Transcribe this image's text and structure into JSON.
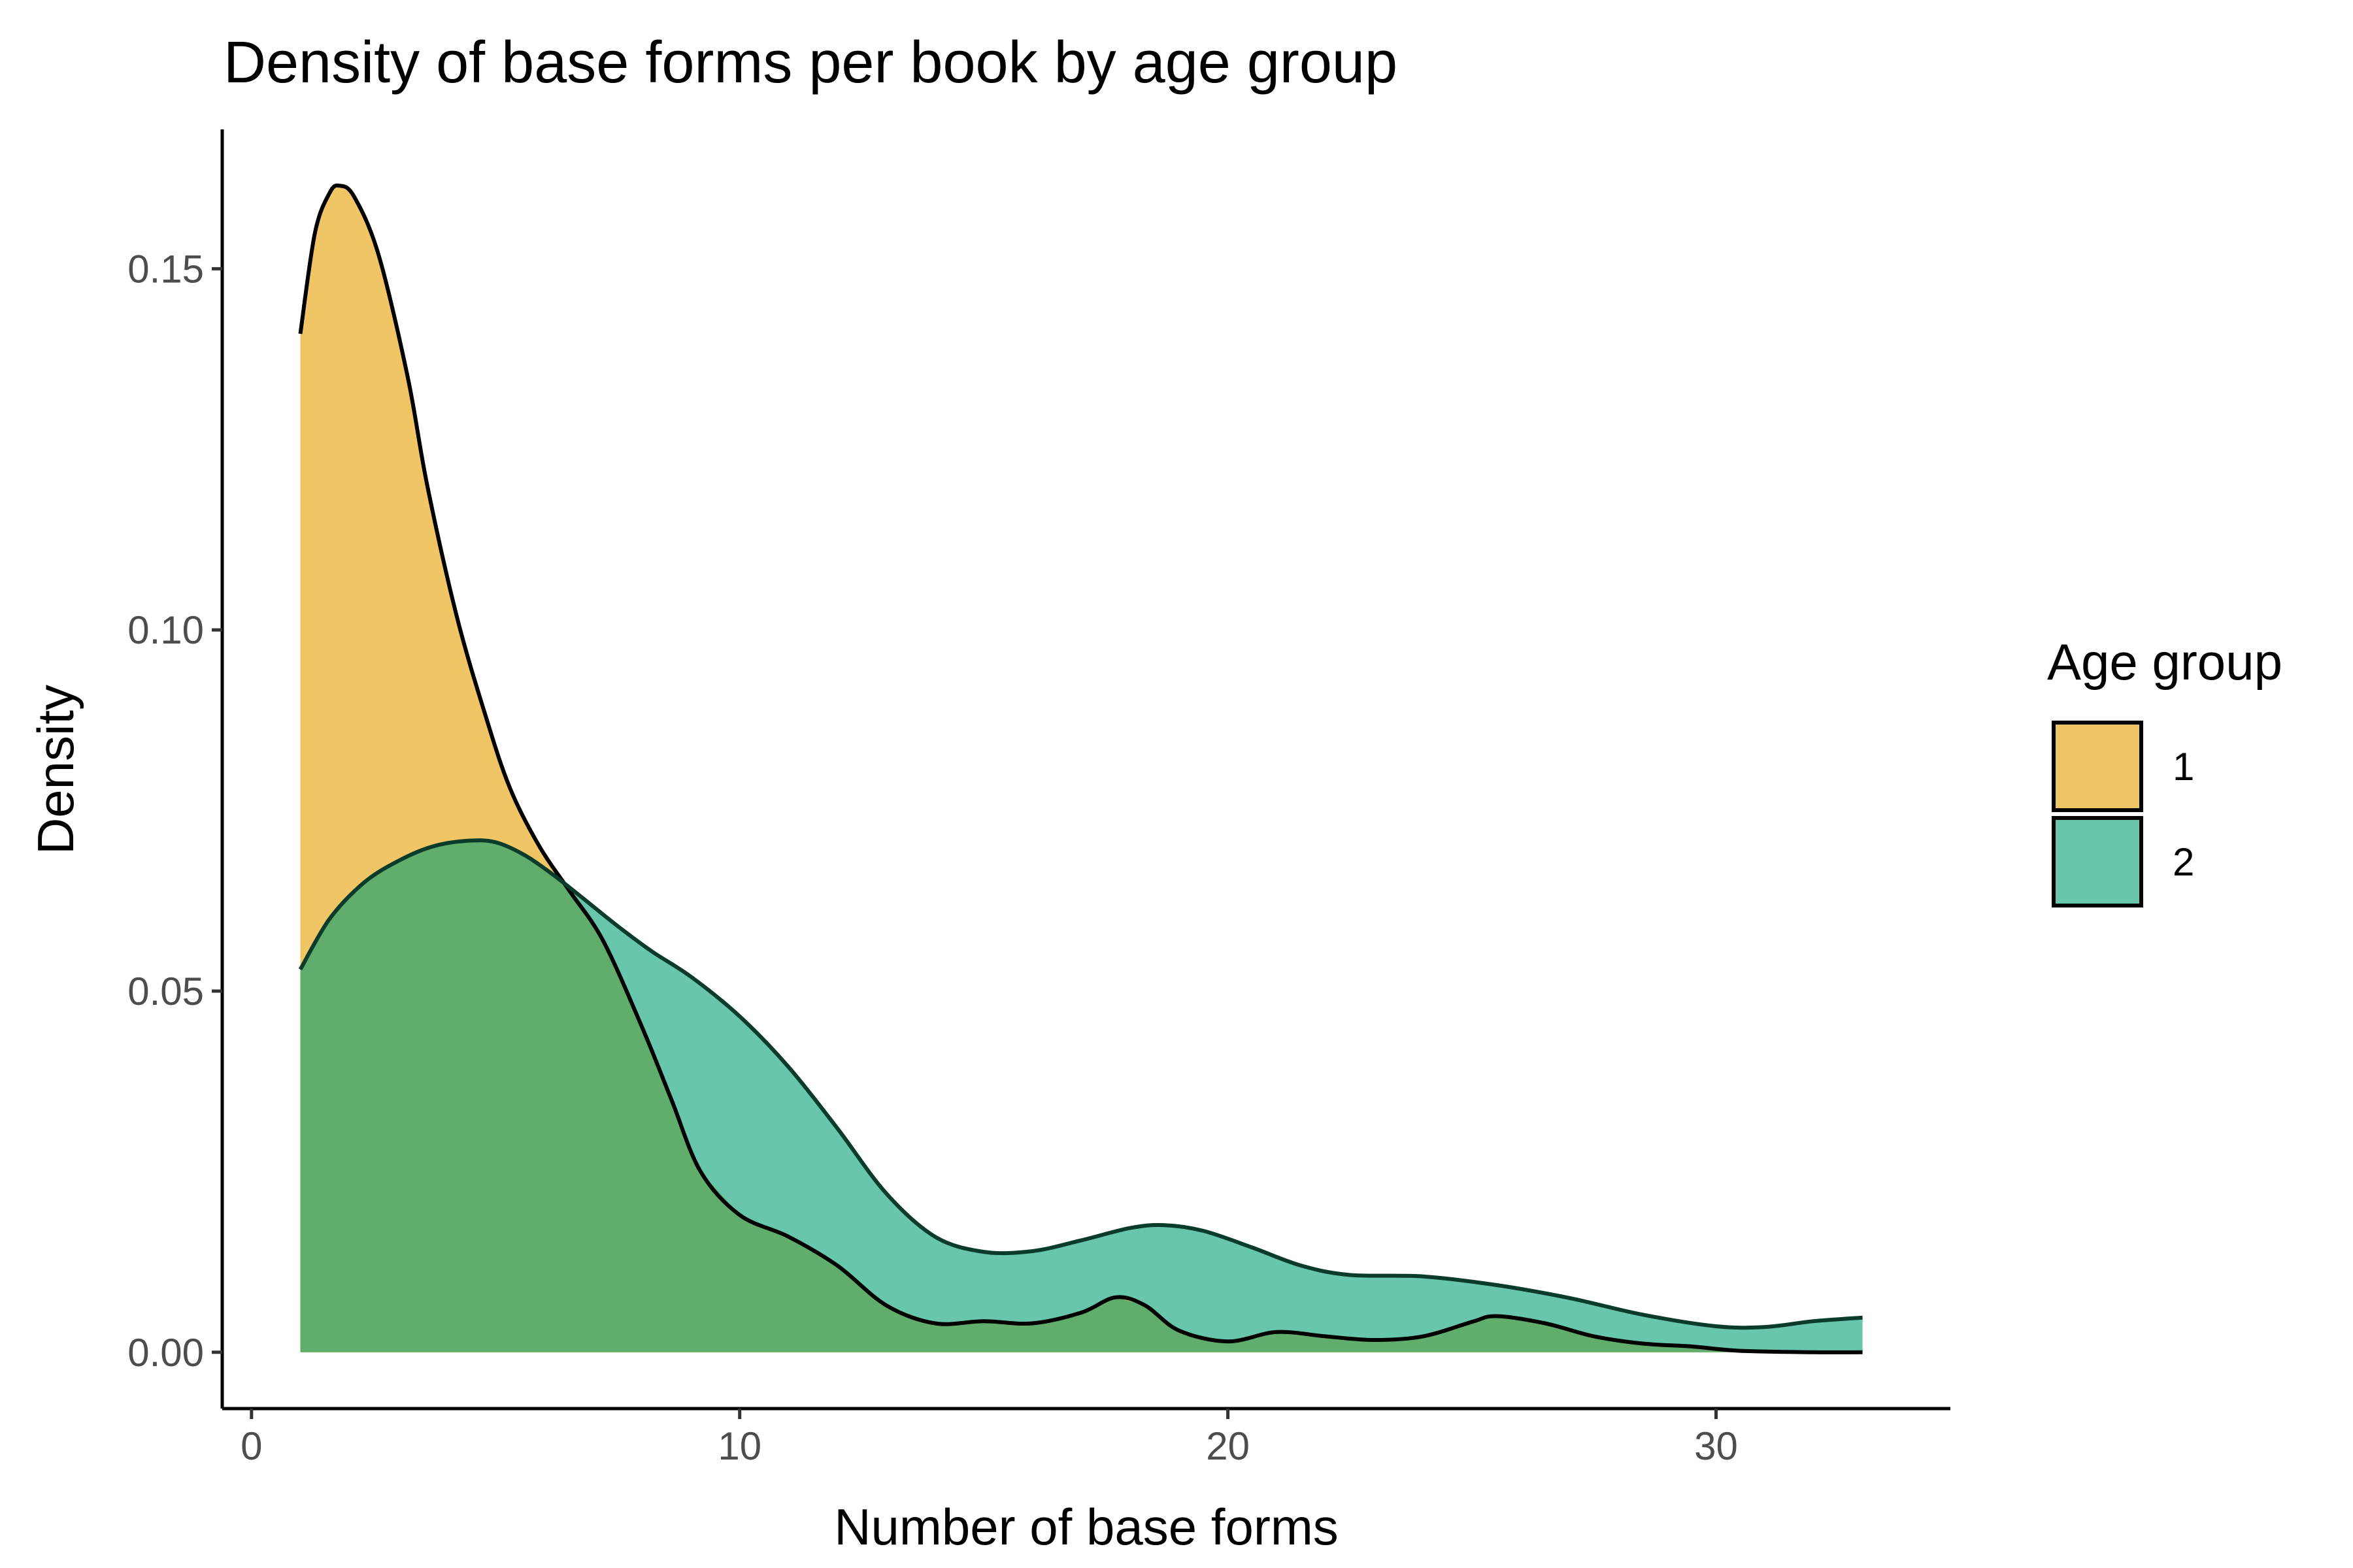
{
  "chart_data": {
    "type": "area",
    "title": "Density of base forms per book by age group",
    "xlabel": "Number of base forms",
    "ylabel": "Density",
    "xlim": [
      -0.6,
      34.8
    ],
    "ylim": [
      -0.0078,
      0.1693
    ],
    "x_ticks": [
      0,
      10,
      20,
      30
    ],
    "y_ticks": [
      0.0,
      0.05,
      0.1,
      0.15
    ],
    "x_tick_labels": [
      "0",
      "10",
      "20",
      "30"
    ],
    "y_tick_labels": [
      "0.00",
      "0.05",
      "0.10",
      "0.15"
    ],
    "grid": false,
    "legend": {
      "title": "Age group",
      "placement": "right",
      "entries": [
        "1",
        "2"
      ]
    },
    "series": [
      {
        "name": "1",
        "color": "#F0C566",
        "points": [
          [
            1.0,
            0.141
          ],
          [
            1.3,
            0.155
          ],
          [
            1.6,
            0.1605
          ],
          [
            1.8,
            0.1615
          ],
          [
            2.1,
            0.16
          ],
          [
            2.6,
            0.152
          ],
          [
            3.2,
            0.135
          ],
          [
            3.6,
            0.12
          ],
          [
            4.2,
            0.102
          ],
          [
            4.8,
            0.088
          ],
          [
            5.3,
            0.078
          ],
          [
            5.9,
            0.07
          ],
          [
            6.5,
            0.064
          ],
          [
            7.2,
            0.057
          ],
          [
            8.0,
            0.045
          ],
          [
            8.6,
            0.035
          ],
          [
            9.2,
            0.025
          ],
          [
            10.0,
            0.019
          ],
          [
            11.0,
            0.016
          ],
          [
            12.0,
            0.012
          ],
          [
            13.0,
            0.0065
          ],
          [
            14.0,
            0.004
          ],
          [
            15.0,
            0.0043
          ],
          [
            16.0,
            0.004
          ],
          [
            17.0,
            0.0055
          ],
          [
            17.7,
            0.0076
          ],
          [
            18.3,
            0.0065
          ],
          [
            19.0,
            0.003
          ],
          [
            20.0,
            0.0015
          ],
          [
            21.0,
            0.0028
          ],
          [
            22.0,
            0.0022
          ],
          [
            23.0,
            0.0017
          ],
          [
            24.0,
            0.0022
          ],
          [
            25.0,
            0.0042
          ],
          [
            25.5,
            0.005
          ],
          [
            26.5,
            0.004
          ],
          [
            27.5,
            0.0022
          ],
          [
            28.5,
            0.0012
          ],
          [
            29.5,
            0.0008
          ],
          [
            30.5,
            0.0002
          ],
          [
            32.0,
            0.0
          ],
          [
            33.0,
            0.0
          ]
        ]
      },
      {
        "name": "2",
        "color": "#68C6AC",
        "points": [
          [
            1.0,
            0.053
          ],
          [
            1.6,
            0.06
          ],
          [
            2.3,
            0.065
          ],
          [
            3.0,
            0.068
          ],
          [
            3.7,
            0.07
          ],
          [
            4.4,
            0.0708
          ],
          [
            5.0,
            0.0706
          ],
          [
            5.6,
            0.0688
          ],
          [
            6.2,
            0.066
          ],
          [
            6.8,
            0.0628
          ],
          [
            7.5,
            0.059
          ],
          [
            8.2,
            0.0555
          ],
          [
            9.0,
            0.052
          ],
          [
            10.0,
            0.0465
          ],
          [
            11.0,
            0.0395
          ],
          [
            12.0,
            0.031
          ],
          [
            13.0,
            0.022
          ],
          [
            14.0,
            0.016
          ],
          [
            15.0,
            0.0139
          ],
          [
            16.0,
            0.014
          ],
          [
            17.0,
            0.0155
          ],
          [
            18.0,
            0.0172
          ],
          [
            18.7,
            0.0176
          ],
          [
            19.5,
            0.0168
          ],
          [
            20.5,
            0.0145
          ],
          [
            21.5,
            0.012
          ],
          [
            22.5,
            0.0107
          ],
          [
            24.0,
            0.0105
          ],
          [
            25.5,
            0.0093
          ],
          [
            27.0,
            0.0075
          ],
          [
            28.5,
            0.0052
          ],
          [
            30.0,
            0.0036
          ],
          [
            31.0,
            0.0035
          ],
          [
            32.0,
            0.0043
          ],
          [
            33.0,
            0.0048
          ]
        ]
      }
    ]
  }
}
